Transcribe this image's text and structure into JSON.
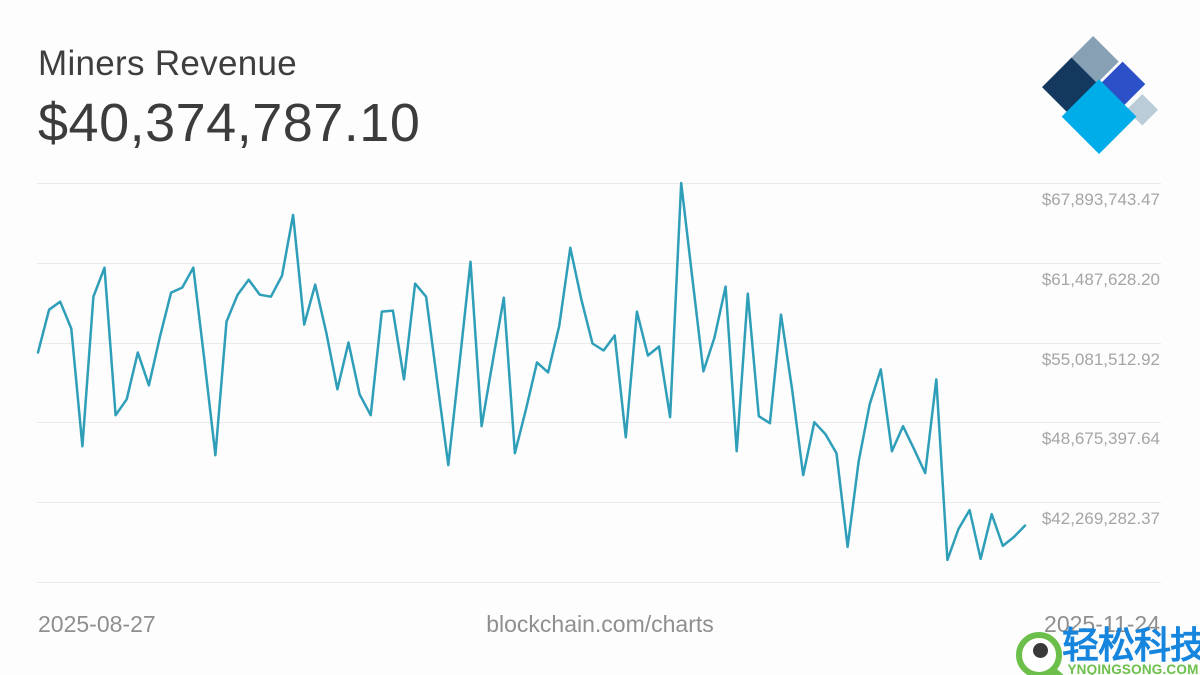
{
  "header": {
    "title": "Miners Revenue",
    "value": "$40,374,787.10"
  },
  "logo": {
    "label": "blockchain.com diamond logo",
    "colors": {
      "top_tile": "#87A0B3",
      "left_tile": "#14395F",
      "right_tile": "#2B50C7",
      "bottom_tile": "#00ADE9",
      "edge_tile": "#B9CCD8"
    }
  },
  "footer": {
    "start_date": "2025-08-27",
    "source": "blockchain.com/charts",
    "end_date": "2025-11-24"
  },
  "watermark": {
    "brand": "轻松科技",
    "site": "YNQINGSONG.COM",
    "brand_color": "#1685DD",
    "site_color": "#6CBF4B"
  },
  "chart_data": {
    "type": "line",
    "title": "Miners Revenue",
    "current_value_usd": 40374787.1,
    "x_start_date": "2025-08-27",
    "x_end_date": "2025-11-24",
    "x_unit": "day",
    "n_points": 90,
    "line_color": "#2E9EB9",
    "grid": true,
    "gridline_color": "#EBEBEB",
    "y_axis_side": "right",
    "legend": "none",
    "y_tick_labels": [
      "$67,893,743.47",
      "$61,487,628.20",
      "$55,081,512.92",
      "$48,675,397.64",
      "$42,269,282.37"
    ],
    "y_tick_values": [
      67893743.47,
      61487628.2,
      55081512.92,
      48675397.64,
      42269282.37
    ],
    "values_usd": [
      54280000,
      57720000,
      58360000,
      56200000,
      46750000,
      58760000,
      61090000,
      49240000,
      50520000,
      54280000,
      51640000,
      55560000,
      59090000,
      59490000,
      61090000,
      53720000,
      46030000,
      56760000,
      58920000,
      60130000,
      58920000,
      58760000,
      60450000,
      65330000,
      56520000,
      59730000,
      55880000,
      51320000,
      55080000,
      50920000,
      49240000,
      57560000,
      57640000,
      52120000,
      59810000,
      58760000,
      51960000,
      45230000,
      53320000,
      61570000,
      48360000,
      53560000,
      58680000,
      46190000,
      49720000,
      53480000,
      52680000,
      56400000,
      62690000,
      58520000,
      55000000,
      54440000,
      55640000,
      47470000,
      57560000,
      54040000,
      54760000,
      49080000,
      67890000,
      60290000,
      52760000,
      55480000,
      59570000,
      46350000,
      59010000,
      49160000,
      48600000,
      57320000,
      51320000,
      44430000,
      48680000,
      47720000,
      46190000,
      38660000,
      45550000,
      50120000,
      52920000,
      46350000,
      48360000,
      46510000,
      44590000,
      52120000,
      37620000,
      40100000,
      41620000,
      37700000,
      41300000,
      38740000,
      39460000,
      40374787.1
    ]
  }
}
